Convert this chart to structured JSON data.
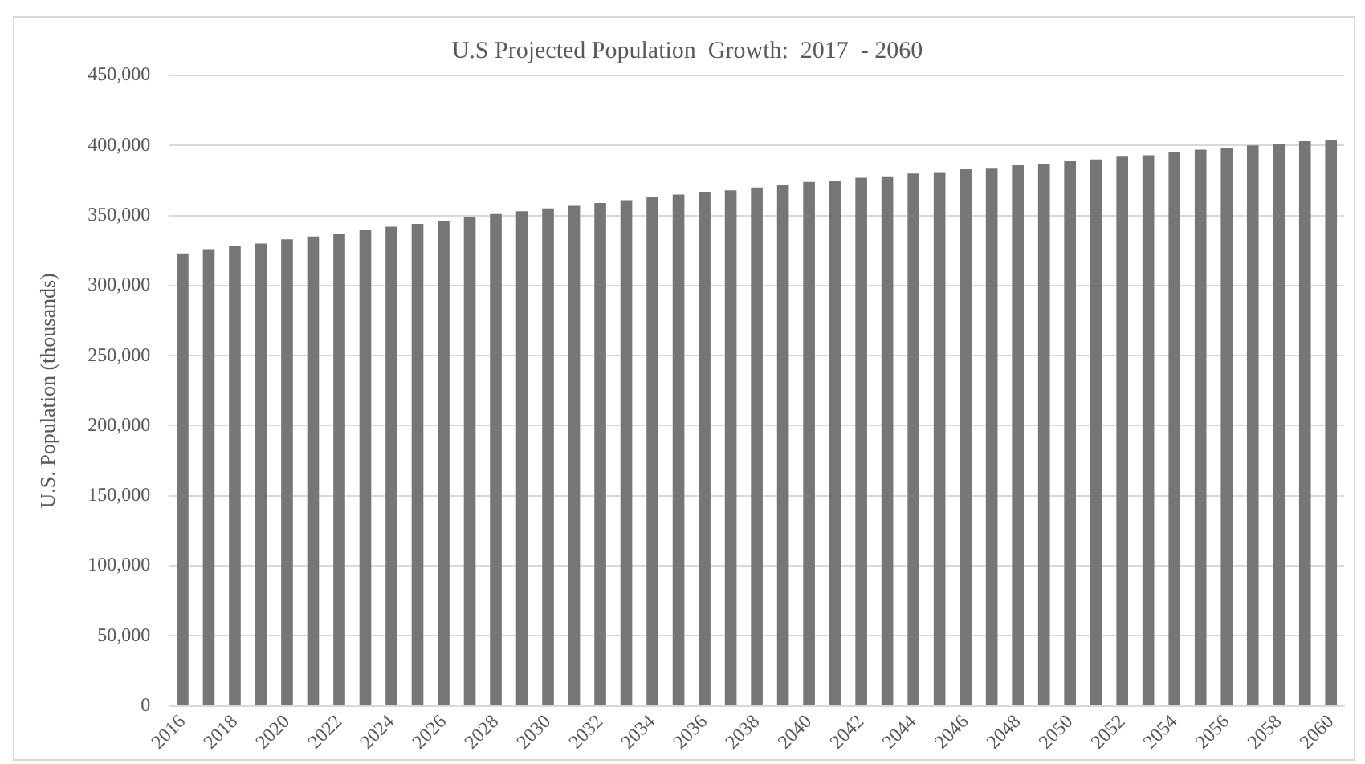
{
  "chart_data": {
    "type": "bar",
    "title": "U.S Projected Population  Growth:  2017  - 2060",
    "ylabel": "U.S. Population (thousands)",
    "categories": [
      "2016",
      null,
      "2018",
      null,
      "2020",
      null,
      "2022",
      null,
      "2024",
      null,
      "2026",
      null,
      "2028",
      null,
      "2030",
      null,
      "2032",
      null,
      "2034",
      null,
      "2036",
      null,
      "2038",
      null,
      "2040",
      null,
      "2042",
      null,
      "2044",
      null,
      "2046",
      null,
      "2048",
      null,
      "2050",
      null,
      "2052",
      null,
      "2054",
      null,
      "2056",
      null,
      "2058",
      null,
      "2060"
    ],
    "values": [
      323000,
      326000,
      328000,
      330000,
      333000,
      335000,
      337000,
      340000,
      342000,
      344000,
      346000,
      349000,
      351000,
      353000,
      355000,
      357000,
      359000,
      361000,
      363000,
      365000,
      367000,
      368000,
      370000,
      372000,
      374000,
      375000,
      377000,
      378000,
      380000,
      381000,
      383000,
      384000,
      386000,
      387000,
      389000,
      390000,
      392000,
      393000,
      395000,
      397000,
      398000,
      400000,
      401000,
      403000,
      404000
    ],
    "color": "#767676",
    "ylim": [
      0,
      450000
    ],
    "yticks": [
      0,
      {
        "value": 50000,
        "label": "50,000"
      },
      {
        "value": 100000,
        "label": "100,000"
      },
      {
        "value": 150000,
        "label": "150,000"
      },
      {
        "value": 200000,
        "label": "200,000"
      },
      {
        "value": 250000,
        "label": "250,000"
      },
      {
        "value": 300000,
        "label": "300,000"
      },
      {
        "value": 350000,
        "label": "350,000"
      },
      {
        "value": 400000,
        "label": "400,000"
      },
      {
        "value": 450000,
        "label": "450,000"
      }
    ],
    "grid": "y"
  }
}
